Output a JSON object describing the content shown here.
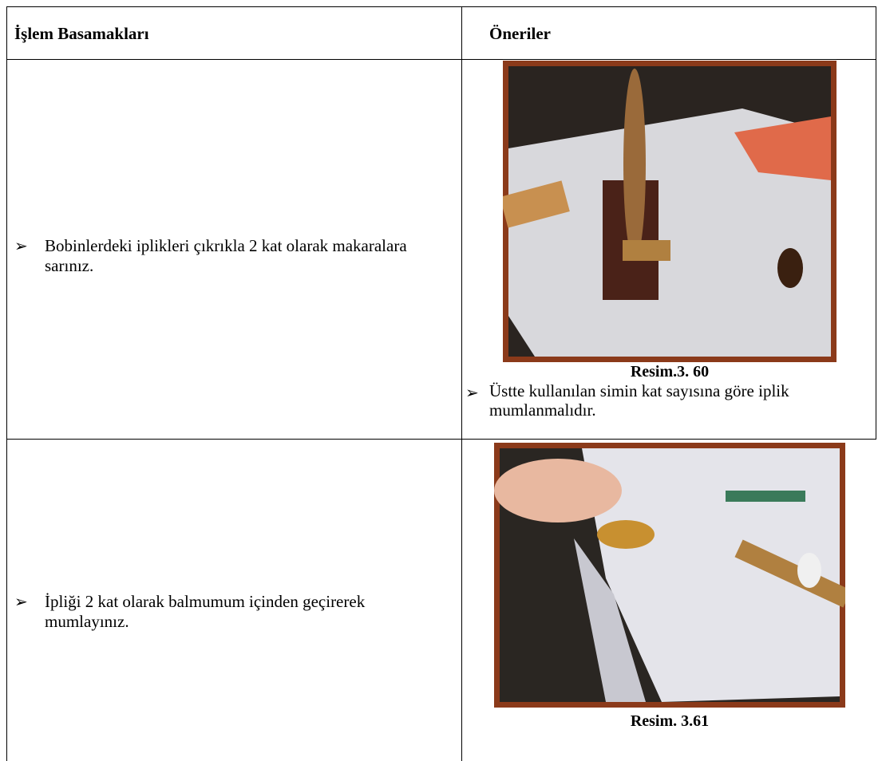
{
  "header": {
    "columns": [
      "İşlem Basamakları",
      "Öneriler"
    ]
  },
  "rows": [
    {
      "step": "Bobinlerdeki iplikleri çıkrıkla 2 kat olarak makaralara sarınız.",
      "caption": "Resim.3. 60",
      "note": "Üstte kullanılan simin kat sayısına göre iplik mumlanmalıdır."
    },
    {
      "step": "İpliği 2 kat olarak balmumum içinden geçirerek mumlayınız.",
      "caption": "Resim. 3.61"
    }
  ]
}
